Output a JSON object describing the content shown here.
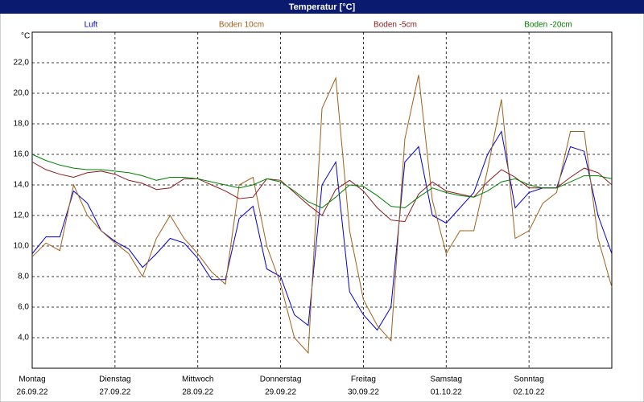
{
  "chart_data": {
    "type": "line",
    "title": "Temperatur [°C]",
    "y_unit": "°C",
    "x": [
      0,
      4,
      8,
      12,
      16,
      20,
      24,
      28,
      32,
      36,
      40,
      44,
      48,
      52,
      56,
      60,
      64,
      68,
      72,
      76,
      80,
      84,
      88,
      92,
      96,
      100,
      104,
      108,
      112,
      116,
      120,
      124,
      128,
      132,
      136,
      140,
      144,
      148,
      152,
      156,
      160,
      164,
      168
    ],
    "xlim": [
      0,
      168
    ],
    "xticks": [
      {
        "value": 0,
        "label": "Montag",
        "date": "26.09.22"
      },
      {
        "value": 24,
        "label": "Dienstag",
        "date": "27.09.22"
      },
      {
        "value": 48,
        "label": "Mittwoch",
        "date": "28.09.22"
      },
      {
        "value": 72,
        "label": "Donnerstag",
        "date": "29.09.22"
      },
      {
        "value": 96,
        "label": "Freitag",
        "date": "30.09.22"
      },
      {
        "value": 120,
        "label": "Samstag",
        "date": "01.10.22"
      },
      {
        "value": 144,
        "label": "Sonntag",
        "date": "02.10.22"
      }
    ],
    "ylim": [
      2,
      24
    ],
    "yticks": [
      {
        "value": 4,
        "label": "4,0"
      },
      {
        "value": 6,
        "label": "6,0"
      },
      {
        "value": 8,
        "label": "8,0"
      },
      {
        "value": 10,
        "label": "10,0"
      },
      {
        "value": 12,
        "label": "12,0"
      },
      {
        "value": 14,
        "label": "14,0"
      },
      {
        "value": 16,
        "label": "16,0"
      },
      {
        "value": 18,
        "label": "18,0"
      },
      {
        "value": 20,
        "label": "20,0"
      },
      {
        "value": 22,
        "label": "22,0"
      }
    ],
    "grid": true,
    "series": [
      {
        "name": "Luft",
        "color": "#0000cc",
        "values": [
          9.5,
          10.6,
          10.6,
          13.6,
          12.8,
          11.0,
          10.3,
          9.8,
          8.6,
          9.5,
          10.5,
          10.2,
          9.2,
          7.8,
          7.8,
          11.8,
          12.6,
          8.5,
          8.0,
          5.5,
          4.8,
          14.0,
          15.5,
          7.0,
          5.5,
          4.5,
          6.0,
          15.5,
          16.5,
          12.0,
          11.5,
          12.5,
          13.5,
          16.0,
          17.5,
          12.5,
          13.5,
          13.8,
          13.8,
          16.5,
          16.2,
          12.0,
          9.5
        ]
      },
      {
        "name": "Boden 10cm",
        "color": "#a0601a",
        "values": [
          9.3,
          10.2,
          9.7,
          14.0,
          12.0,
          11.0,
          10.2,
          9.5,
          8.0,
          10.5,
          12.0,
          10.5,
          9.5,
          8.3,
          7.5,
          14.0,
          14.5,
          10.0,
          7.5,
          4.0,
          3.0,
          19.0,
          21.0,
          11.0,
          6.5,
          4.8,
          3.8,
          17.0,
          21.2,
          13.0,
          9.5,
          11.0,
          11.0,
          15.0,
          19.6,
          10.5,
          11.0,
          12.8,
          13.5,
          17.5,
          17.5,
          10.5,
          7.3
        ]
      },
      {
        "name": "Boden -5cm",
        "color": "#8b1a1a",
        "values": [
          15.5,
          15.0,
          14.7,
          14.5,
          14.8,
          14.9,
          14.7,
          14.3,
          14.1,
          13.7,
          13.8,
          14.4,
          14.4,
          14.0,
          13.6,
          13.1,
          13.2,
          14.4,
          14.3,
          13.5,
          12.7,
          12.0,
          13.7,
          14.3,
          13.6,
          12.5,
          11.7,
          11.6,
          13.4,
          14.2,
          13.6,
          13.4,
          13.2,
          14.2,
          15.0,
          14.5,
          13.8,
          13.8,
          13.8,
          14.5,
          15.1,
          14.8,
          14.0
        ]
      },
      {
        "name": "Boden -20cm",
        "color": "#008000",
        "values": [
          16.0,
          15.6,
          15.3,
          15.1,
          15.0,
          15.0,
          14.9,
          14.8,
          14.6,
          14.3,
          14.5,
          14.5,
          14.4,
          14.2,
          14.0,
          13.8,
          14.0,
          14.4,
          14.2,
          13.6,
          12.9,
          12.5,
          13.2,
          14.0,
          13.9,
          13.3,
          12.6,
          12.5,
          13.2,
          13.8,
          13.5,
          13.3,
          13.2,
          13.6,
          14.2,
          14.4,
          14.0,
          13.8,
          13.8,
          14.2,
          14.6,
          14.6,
          14.4
        ]
      }
    ]
  }
}
